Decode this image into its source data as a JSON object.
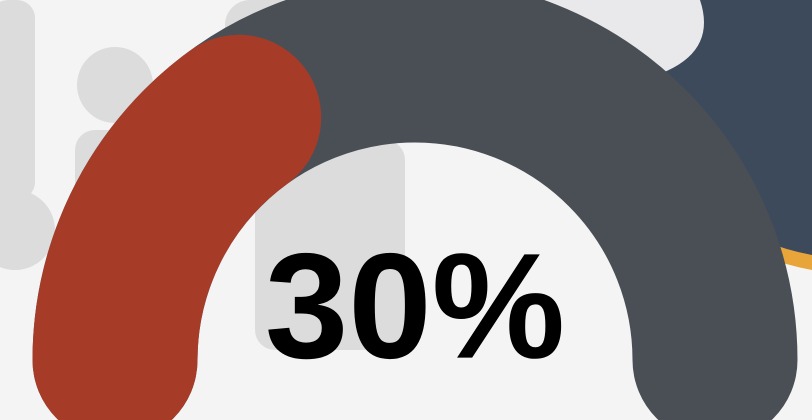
{
  "chart_data": {
    "type": "gauge",
    "values": [
      30
    ],
    "value_labels": [
      "30%"
    ],
    "ylim": [
      0,
      100
    ],
    "color": "#a63c28",
    "track_color": "#4a4f56"
  }
}
